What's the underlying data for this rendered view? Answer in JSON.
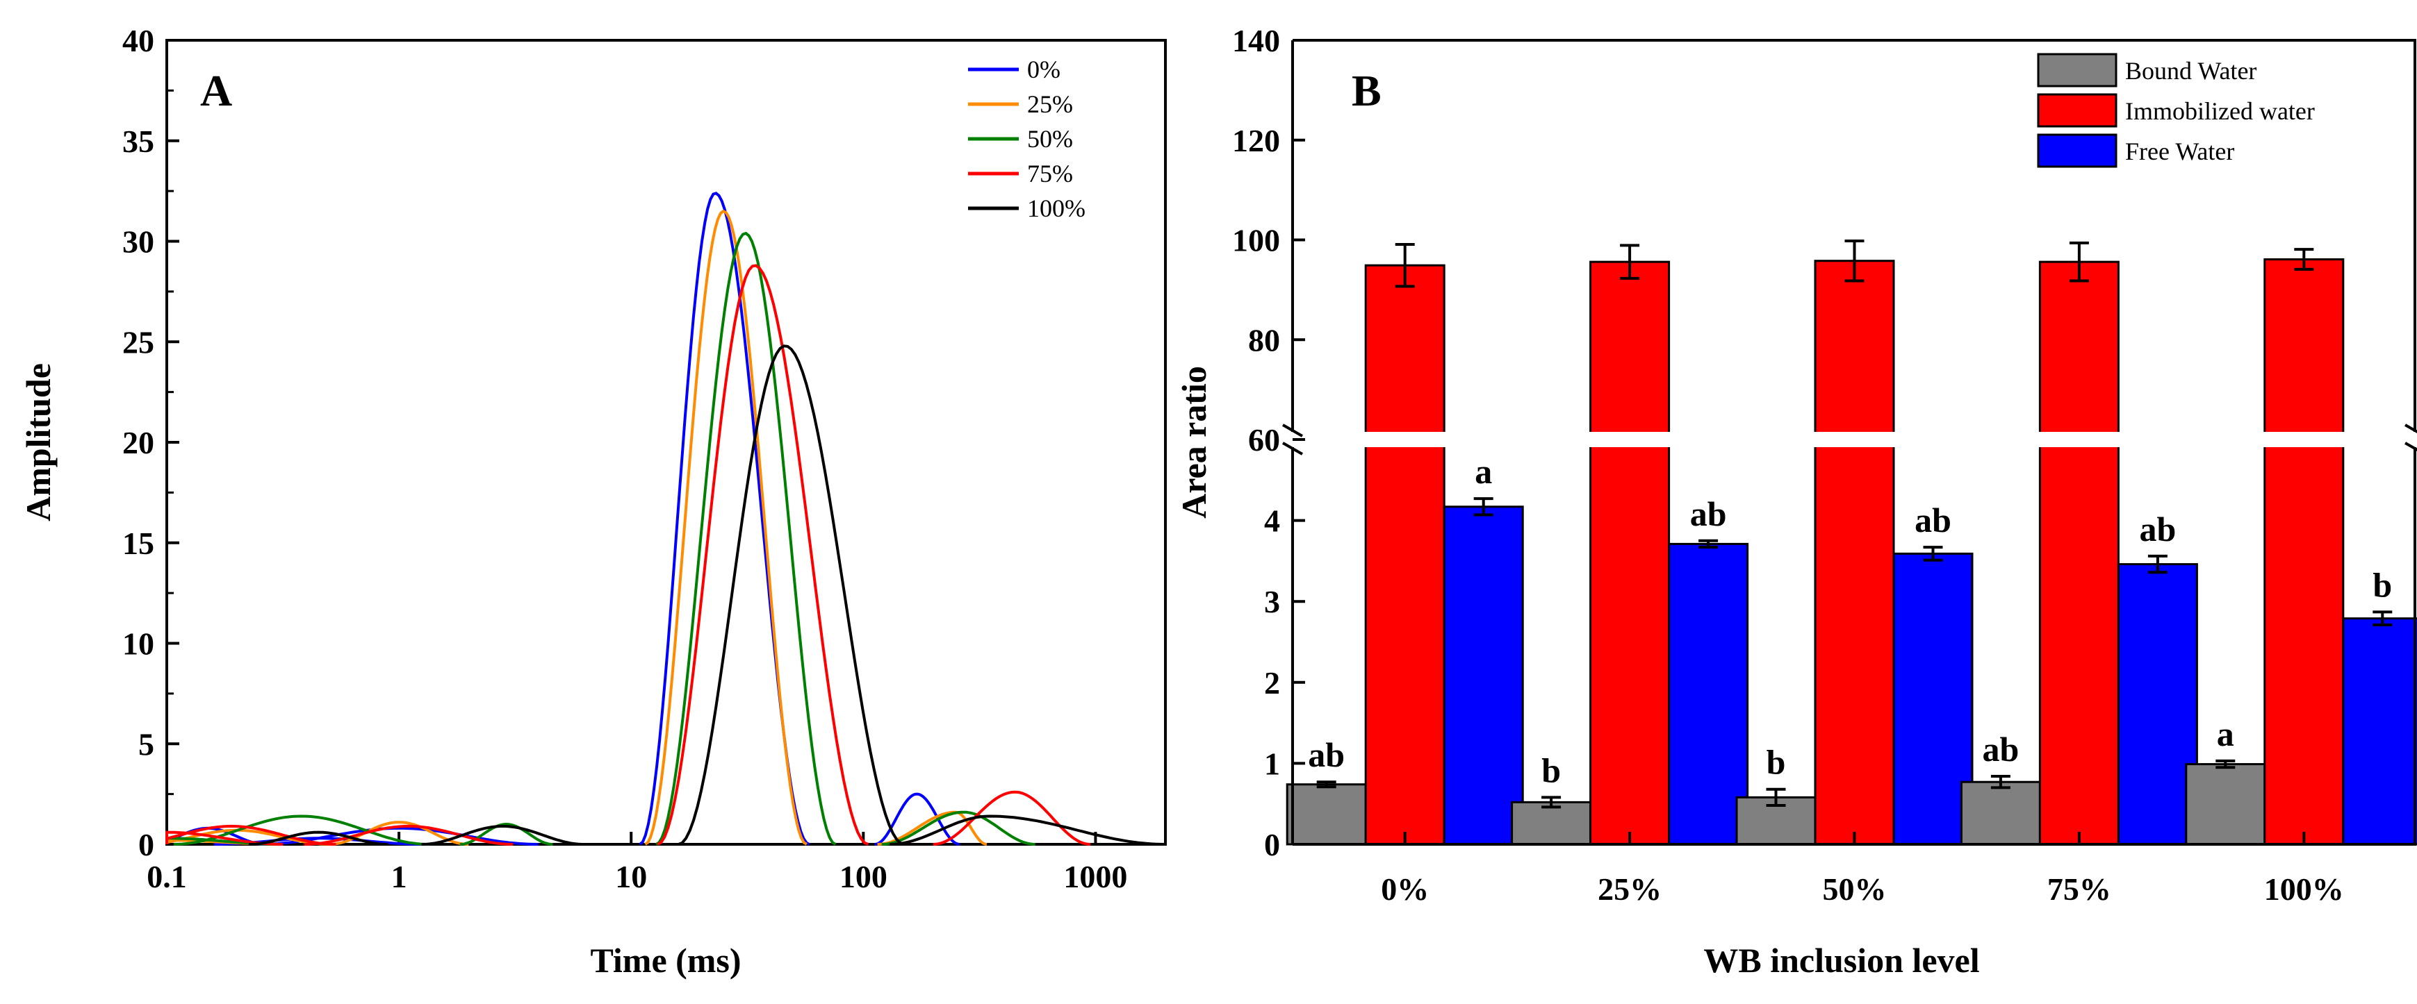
{
  "colors": {
    "s0": "#0000ff",
    "s25": "#ff8c00",
    "s50": "#008000",
    "s75": "#ff0000",
    "s100": "#000000",
    "bound": "#808080",
    "immobilized": "#ff0000",
    "free": "#0000ff"
  },
  "chart_data": [
    {
      "type": "line",
      "panel_label": "A",
      "xlabel": "Time (ms)",
      "ylabel": "Amplitude",
      "xscale": "log",
      "xlim": [
        0.1,
        2000
      ],
      "ylim": [
        0,
        40
      ],
      "xticks": [
        0.1,
        1,
        10,
        100,
        1000
      ],
      "xtick_labels": [
        "0.1",
        "1",
        "10",
        "100",
        "1000"
      ],
      "yticks": [
        0,
        5,
        10,
        15,
        20,
        25,
        30,
        35,
        40
      ],
      "ytick_labels": [
        "0",
        "5",
        "10",
        "15",
        "20",
        "25",
        "30",
        "35",
        "40"
      ],
      "legend_position": "top-right",
      "series": [
        {
          "name": "0%",
          "color_key": "s0",
          "peaks": [
            [
              0.1,
              0.3,
              0.5
            ],
            [
              0.15,
              0.8,
              0.25
            ],
            [
              0.45,
              0.3,
              0.45
            ],
            [
              1.0,
              0.8,
              0.6
            ],
            [
              23,
              32.4,
              10.9,
              58.5
            ],
            [
              170,
              2.5,
              112,
              260
            ]
          ]
        },
        {
          "name": "25%",
          "color_key": "s25",
          "peaks": [
            [
              0.1,
              0.2,
              0.5
            ],
            [
              0.2,
              0.7,
              0.4
            ],
            [
              1.0,
              1.1,
              0.3
            ],
            [
              25,
              31.5,
              11.5,
              57
            ],
            [
              250,
              1.6,
              115,
              340
            ]
          ]
        },
        {
          "name": "50%",
          "color_key": "s50",
          "peaks": [
            [
              0.1,
              0.3,
              0.5
            ],
            [
              0.38,
              1.4,
              0.55
            ],
            [
              2.9,
              1.0,
              0.2
            ],
            [
              31,
              30.4,
              12.8,
              76
            ],
            [
              270,
              1.6,
              120,
              550
            ]
          ]
        },
        {
          "name": "75%",
          "color_key": "s75",
          "peaks": [
            [
              0.1,
              0.6,
              0.5
            ],
            [
              0.19,
              0.9,
              0.45
            ],
            [
              1.1,
              0.9,
              0.45
            ],
            [
              34,
              28.8,
              13,
              105
            ],
            [
              450,
              2.6,
              200,
              950
            ]
          ]
        },
        {
          "name": "100%",
          "color_key": "s100",
          "peaks": [
            [
              0.45,
              0.6,
              0.3
            ],
            [
              2.8,
              0.9,
              0.35
            ],
            [
              46,
              24.8,
              16,
              150
            ],
            [
              350,
              1.4,
              130,
              2000
            ]
          ]
        }
      ]
    },
    {
      "type": "bar",
      "panel_label": "B",
      "xlabel": "WB inclusion level",
      "ylabel": "Area ratio",
      "categories": [
        "0%",
        "25%",
        "50%",
        "75%",
        "100%"
      ],
      "y_axis_break": {
        "lower_range": [
          0,
          5
        ],
        "upper_range": [
          60,
          140
        ]
      },
      "lower_yticks": [
        0,
        1,
        2,
        3,
        4
      ],
      "lower_ytick_labels": [
        "0",
        "1",
        "2",
        "3",
        "4"
      ],
      "upper_yticks": [
        60,
        80,
        100,
        120,
        140
      ],
      "upper_ytick_labels": [
        "60",
        "80",
        "100",
        "120",
        "140"
      ],
      "legend_position": "top-right",
      "series": [
        {
          "name": "Bound Water",
          "color_key": "bound",
          "values": [
            0.74,
            0.52,
            0.58,
            0.77,
            0.99
          ],
          "errors": [
            0.03,
            0.06,
            0.1,
            0.07,
            0.04
          ],
          "letters": [
            "ab",
            "b",
            "b",
            "ab",
            "a"
          ]
        },
        {
          "name": "Immobilized water",
          "color_key": "immobilized",
          "values": [
            94.9,
            95.6,
            95.8,
            95.6,
            96.1
          ],
          "errors": [
            4.2,
            3.3,
            4.0,
            3.8,
            2.0
          ],
          "letters": [
            "",
            "",
            "",
            "",
            ""
          ]
        },
        {
          "name": "Free Water",
          "color_key": "free",
          "values": [
            4.17,
            3.71,
            3.59,
            3.46,
            2.79
          ],
          "errors": [
            0.1,
            0.04,
            0.08,
            0.1,
            0.08
          ],
          "letters": [
            "a",
            "ab",
            "ab",
            "ab",
            "b"
          ]
        }
      ]
    }
  ]
}
